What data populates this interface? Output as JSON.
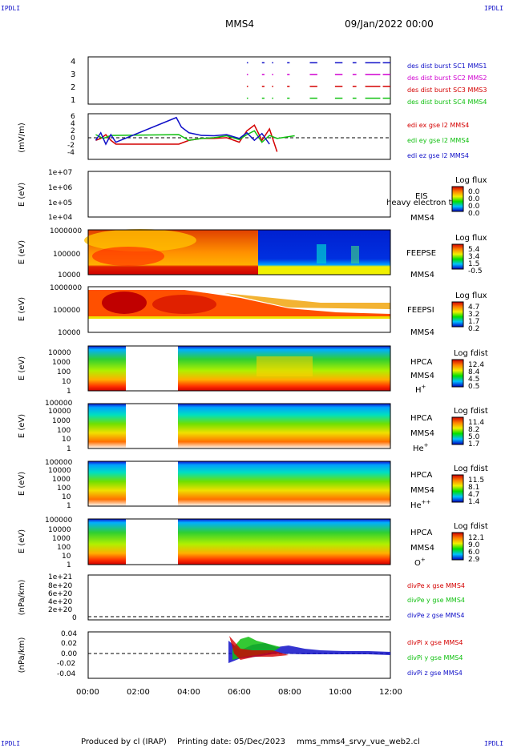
{
  "header": {
    "corner_tl": "IPDLI",
    "corner_tr": "IPDLI",
    "corner_bl": "IPDLI",
    "corner_br": "IPDLI",
    "spacecraft": "MMS4",
    "datetime": "09/Jan/2022 00:00"
  },
  "footer": {
    "produced_by": "Produced by cl (IRAP)",
    "printing_date": "Printing date: 05/Dec/2023",
    "script_name": "mms_mms4_srvy_vue_web2.cl"
  },
  "colors": {
    "red": "#d40000",
    "green": "#10c010",
    "blue": "#1010c8",
    "magenta": "#d000d0"
  },
  "chart_data": [
    {
      "type": "line",
      "panel": "burst",
      "ylim": [
        0.5,
        4.5
      ],
      "yticks": [
        "1",
        "2",
        "3",
        "4"
      ],
      "xticks": [
        "00:00",
        "02:00",
        "04:00",
        "06:00",
        "08:00",
        "10:00",
        "12:00"
      ],
      "xlim_hours": [
        0,
        12
      ],
      "legend": [
        "des dist burst SC1 MMS1",
        "des dist burst SC2 MMS2",
        "des dist burst SC3 MMS3",
        "des dist burst SC4 MMS4"
      ],
      "series": [
        {
          "name": "des dist burst SC1 MMS1",
          "y": 4,
          "segments": [
            [
              6.3,
              6.35
            ],
            [
              6.9,
              7.0
            ],
            [
              7.3,
              7.35
            ],
            [
              7.9,
              8.0
            ],
            [
              8.8,
              9.1
            ],
            [
              9.8,
              10.1
            ],
            [
              10.5,
              10.65
            ],
            [
              11.0,
              11.6
            ],
            [
              11.7,
              12.0
            ]
          ]
        },
        {
          "name": "des dist burst SC2 MMS2",
          "y": 3,
          "segments": [
            [
              6.3,
              6.35
            ],
            [
              6.9,
              7.0
            ],
            [
              7.3,
              7.35
            ],
            [
              7.9,
              8.0
            ],
            [
              8.8,
              9.1
            ],
            [
              9.8,
              10.1
            ],
            [
              10.5,
              10.65
            ],
            [
              11.0,
              11.6
            ],
            [
              11.7,
              12.0
            ]
          ]
        },
        {
          "name": "des dist burst SC3 MMS3",
          "y": 2,
          "segments": [
            [
              6.3,
              6.35
            ],
            [
              6.9,
              7.0
            ],
            [
              7.3,
              7.35
            ],
            [
              7.9,
              8.0
            ],
            [
              8.8,
              9.1
            ],
            [
              9.8,
              10.1
            ],
            [
              10.5,
              10.65
            ],
            [
              11.0,
              11.6
            ],
            [
              11.7,
              12.0
            ]
          ]
        },
        {
          "name": "des dist burst SC4 MMS4",
          "y": 1,
          "segments": [
            [
              6.3,
              6.35
            ],
            [
              6.9,
              7.0
            ],
            [
              7.3,
              7.35
            ],
            [
              7.9,
              8.0
            ],
            [
              8.8,
              9.1
            ],
            [
              9.8,
              10.1
            ],
            [
              10.5,
              10.65
            ],
            [
              11.0,
              11.6
            ],
            [
              11.7,
              12.0
            ]
          ]
        }
      ]
    },
    {
      "type": "line",
      "panel": "edi",
      "ylabel": "(mV/m)",
      "ylim": [
        -6,
        6
      ],
      "yticks": [
        "-4",
        "-2",
        "0",
        "2",
        "4",
        "6"
      ],
      "legend": [
        "edi ex gse l2 MMS4",
        "edi ey gse l2 MMS4",
        "edi ez gse l2 MMS4"
      ],
      "series": [
        {
          "name": "edi ex gse l2 MMS4",
          "x": [
            0.3,
            0.5,
            0.7,
            0.9,
            1.1,
            3.6,
            4.0,
            4.5,
            5.0,
            5.5,
            6.0,
            6.3,
            6.6,
            6.9,
            7.2,
            7.5
          ],
          "y": [
            -1,
            -0.5,
            0.5,
            -1,
            -2,
            -2,
            -1,
            -0.5,
            -0.5,
            -0.3,
            -1.5,
            1.5,
            3,
            -1,
            2,
            -4
          ]
        },
        {
          "name": "edi ey gse l2 MMS4",
          "x": [
            0.3,
            0.6,
            0.9,
            3.6,
            4.0,
            4.5,
            5.0,
            5.5,
            6.0,
            6.3,
            6.6,
            6.9,
            7.2,
            7.5,
            8.2
          ],
          "y": [
            0.5,
            -0.5,
            0.3,
            0.5,
            -1,
            -0.5,
            -0.3,
            0.2,
            -0.8,
            0.5,
            1.5,
            -1.5,
            0.3,
            -0.5,
            0.2
          ]
        },
        {
          "name": "edi ez gse l2 MMS4",
          "x": [
            0.3,
            0.5,
            0.7,
            0.9,
            1.1,
            3.5,
            3.7,
            4.0,
            4.5,
            5.0,
            5.5,
            6.0,
            6.3,
            6.6,
            6.9,
            7.2
          ],
          "y": [
            -1,
            1,
            -2,
            0.5,
            -1.5,
            5,
            2.5,
            1,
            0.3,
            0.2,
            0.5,
            -0.5,
            1,
            -1,
            0.8,
            -2
          ]
        }
      ]
    },
    {
      "type": "heatmap",
      "panel": "EIS",
      "ylabel": "E (eV)",
      "yscale": "log",
      "yticks": [
        "1e+04",
        "1e+05",
        "1e+06",
        "1e+07"
      ],
      "instrument": "EIS",
      "overlay_text": "heavy electron to",
      "spacecraft": "MMS4",
      "colorbar_title": "Log flux",
      "colorbar_ticks": [
        "0.0",
        "0.0",
        "0.0",
        "0.0"
      ]
    },
    {
      "type": "heatmap",
      "panel": "FEEPSE",
      "ylabel": "E (eV)",
      "yscale": "log",
      "yticks": [
        "10000",
        "100000",
        "1000000"
      ],
      "instrument": "FEEPSE",
      "spacecraft": "MMS4",
      "colorbar_title": "Log flux",
      "colorbar_ticks": [
        "5.4",
        "3.4",
        "1.5",
        "-0.5"
      ]
    },
    {
      "type": "heatmap",
      "panel": "FEEPSI",
      "ylabel": "E (eV)",
      "yscale": "log",
      "yticks": [
        "10000",
        "100000",
        "1000000"
      ],
      "instrument": "FEEPSI",
      "spacecraft": "MMS4",
      "colorbar_title": "Log flux",
      "colorbar_ticks": [
        "4.7",
        "3.2",
        "1.7",
        "0.2"
      ]
    },
    {
      "type": "heatmap",
      "panel": "HPCA-H",
      "ylabel": "E (eV)",
      "yscale": "log",
      "yticks": [
        "1",
        "10",
        "100",
        "1000",
        "10000"
      ],
      "instrument": "HPCA",
      "spacecraft": "MMS4",
      "species": "H",
      "species_sup": "+",
      "colorbar_title": "Log fdist",
      "colorbar_ticks": [
        "12.4",
        "8.4",
        "4.5",
        "0.5"
      ],
      "data_gap_hours": [
        1.5,
        3.6
      ]
    },
    {
      "type": "heatmap",
      "panel": "HPCA-He+",
      "ylabel": "E (eV)",
      "yscale": "log",
      "yticks": [
        "1",
        "10",
        "100",
        "1000",
        "10000",
        "100000"
      ],
      "instrument": "HPCA",
      "spacecraft": "MMS4",
      "species": "He",
      "species_sup": "+",
      "colorbar_title": "Log fdist",
      "colorbar_ticks": [
        "11.4",
        "8.2",
        "5.0",
        "1.7"
      ],
      "data_gap_hours": [
        1.5,
        3.6
      ]
    },
    {
      "type": "heatmap",
      "panel": "HPCA-He++",
      "ylabel": "E (eV)",
      "yscale": "log",
      "yticks": [
        "1",
        "10",
        "100",
        "1000",
        "10000",
        "100000"
      ],
      "instrument": "HPCA",
      "spacecraft": "MMS4",
      "species": "He",
      "species_sup": "++",
      "colorbar_title": "Log fdist",
      "colorbar_ticks": [
        "11.5",
        "8.1",
        "4.7",
        "1.4"
      ],
      "data_gap_hours": [
        1.5,
        3.6
      ]
    },
    {
      "type": "heatmap",
      "panel": "HPCA-O+",
      "ylabel": "E (eV)",
      "yscale": "log",
      "yticks": [
        "1",
        "10",
        "100",
        "1000",
        "10000",
        "100000"
      ],
      "instrument": "HPCA",
      "spacecraft": "MMS4",
      "species": "O",
      "species_sup": "+",
      "colorbar_title": "Log fdist",
      "colorbar_ticks": [
        "12.1",
        "9.0",
        "6.0",
        "2.9"
      ],
      "data_gap_hours": [
        1.5,
        3.6
      ]
    },
    {
      "type": "line",
      "panel": "divPe",
      "ylabel": "(nPa/km)",
      "ylim": [
        0,
        1e+21
      ],
      "yticks": [
        "0",
        "2e+20",
        "4e+20",
        "6e+20",
        "8e+20",
        "1e+21"
      ],
      "legend": [
        "divPe x gse MMS4",
        "divPe y gse MMS4",
        "divPe z gse MMS4"
      ]
    },
    {
      "type": "line",
      "panel": "divPi",
      "ylabel": "(nPa/km)",
      "ylim": [
        -0.05,
        0.045
      ],
      "yticks": [
        "-0.04",
        "-0.02",
        "0.00",
        "0.02",
        "0.04"
      ],
      "legend": [
        "divPi x gse MMS4",
        "divPi y gse MMS4",
        "divPi z gse MMS4"
      ]
    }
  ]
}
